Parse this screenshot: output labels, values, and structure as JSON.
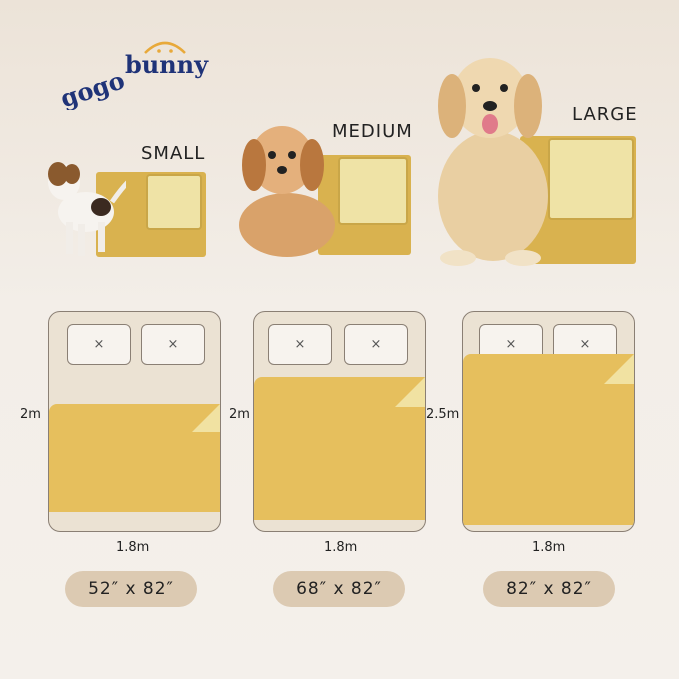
{
  "brand": {
    "logo_text": "gogobunny",
    "colors": {
      "navy": "#1f3378",
      "orange": "#e8a93a"
    }
  },
  "products": [
    {
      "size": "SMALL",
      "bed_height": "2m",
      "bed_width": "1.8m",
      "dimensions": "52″ x 82″"
    },
    {
      "size": "MEDIUM",
      "bed_height": "2m",
      "bed_width": "1.8m",
      "dimensions": "68″ x 82″"
    },
    {
      "size": "LARGE",
      "bed_height": "2.5m",
      "bed_width": "1.8m",
      "dimensions": "82″ x 82″"
    }
  ],
  "pillow_mark": "×",
  "colors": {
    "mat": "#d9b24f",
    "mat_fold": "#efe3a6",
    "blanket": "#e6bf5d",
    "bed": "#ebe2d3",
    "pill": "#dccab2"
  }
}
